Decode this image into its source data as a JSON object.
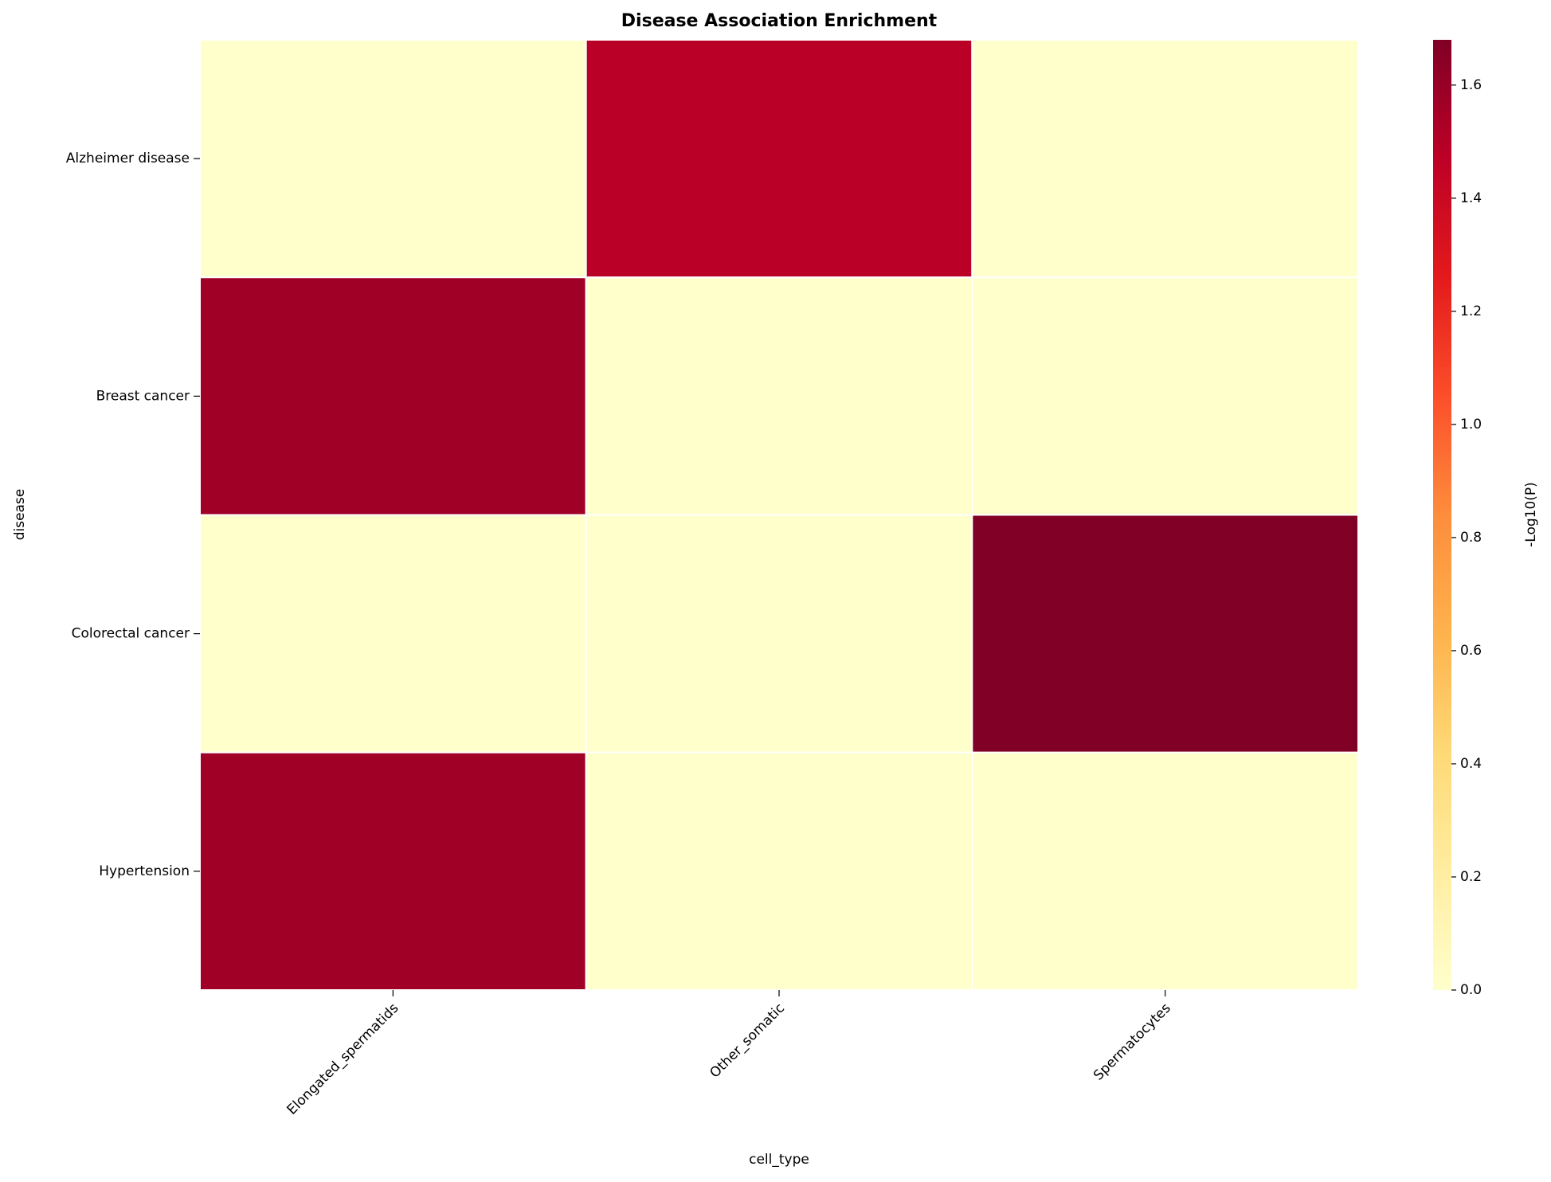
{
  "chart_data": {
    "type": "heatmap",
    "title": "Disease Association Enrichment",
    "x_label": "cell_type",
    "y_label": "disease",
    "x_categories": [
      "Elongated_spermatids",
      "Other_somatic",
      "Spermatocytes"
    ],
    "y_categories": [
      "Alzheimer disease",
      "Breast cancer",
      "Colorectal cancer",
      "Hypertension"
    ],
    "values": [
      [
        0,
        1.48,
        0
      ],
      [
        1.57,
        0,
        0
      ],
      [
        0,
        0,
        1.68
      ],
      [
        1.57,
        0,
        0
      ]
    ],
    "colormap": "YlOrRd",
    "colorbar_label": "-Log10(P)",
    "clim": [
      0,
      1.68
    ],
    "cticks": [
      {
        "value": 0,
        "label": "0.0"
      },
      0.2,
      0.4,
      0.6,
      0.8,
      {
        "value": 1,
        "label": "1.0"
      },
      1.2,
      1.4,
      1.6
    ]
  }
}
